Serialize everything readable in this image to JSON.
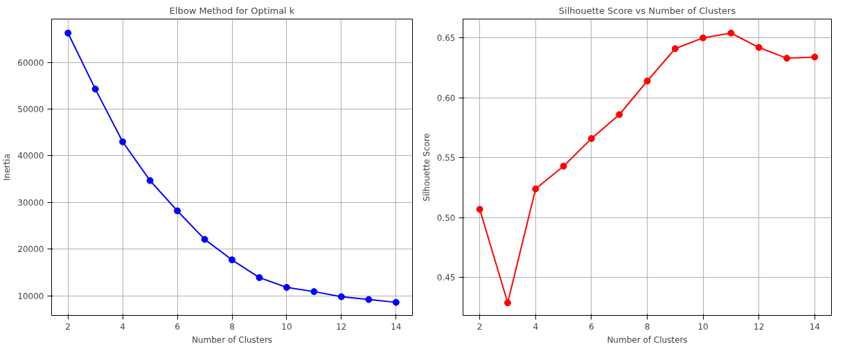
{
  "chart_data": [
    {
      "type": "line",
      "title": "Elbow Method for Optimal k",
      "xlabel": "Number of Clusters",
      "ylabel": "Inertia",
      "x": [
        2,
        3,
        4,
        5,
        6,
        7,
        8,
        9,
        10,
        11,
        12,
        13,
        14
      ],
      "series": [
        {
          "color": "#0000ff",
          "values": [
            66300,
            54300,
            43000,
            34700,
            28200,
            22100,
            17700,
            13900,
            11800,
            10900,
            9800,
            9200,
            8600
          ]
        }
      ],
      "xlim": [
        1.4,
        14.6
      ],
      "xticks": [
        2,
        4,
        6,
        8,
        10,
        12,
        14
      ],
      "ylim": [
        5800,
        69300
      ],
      "yticks": [
        10000,
        20000,
        30000,
        40000,
        50000,
        60000
      ],
      "grid": true,
      "marker": "circle",
      "line_style": "solid"
    },
    {
      "type": "line",
      "title": "Silhouette Score vs Number of Clusters",
      "xlabel": "Number of Clusters",
      "ylabel": "Silhouette Score",
      "x": [
        2,
        3,
        4,
        5,
        6,
        7,
        8,
        9,
        10,
        11,
        12,
        13,
        14
      ],
      "series": [
        {
          "color": "#ff0000",
          "values": [
            0.507,
            0.429,
            0.524,
            0.543,
            0.566,
            0.586,
            0.614,
            0.641,
            0.65,
            0.654,
            0.642,
            0.633,
            0.634
          ]
        }
      ],
      "xlim": [
        1.4,
        14.6
      ],
      "xticks": [
        2,
        4,
        6,
        8,
        10,
        12,
        14
      ],
      "ylim": [
        0.4185,
        0.6657
      ],
      "yticks": [
        {
          "value": 0.45,
          "label": "0.45"
        },
        {
          "value": 0.5,
          "label": "0.50"
        },
        {
          "value": 0.55,
          "label": "0.55"
        },
        {
          "value": 0.6,
          "label": "0.60"
        },
        {
          "value": 0.65,
          "label": "0.65"
        }
      ],
      "grid": true,
      "marker": "circle",
      "line_style": "solid"
    }
  ]
}
